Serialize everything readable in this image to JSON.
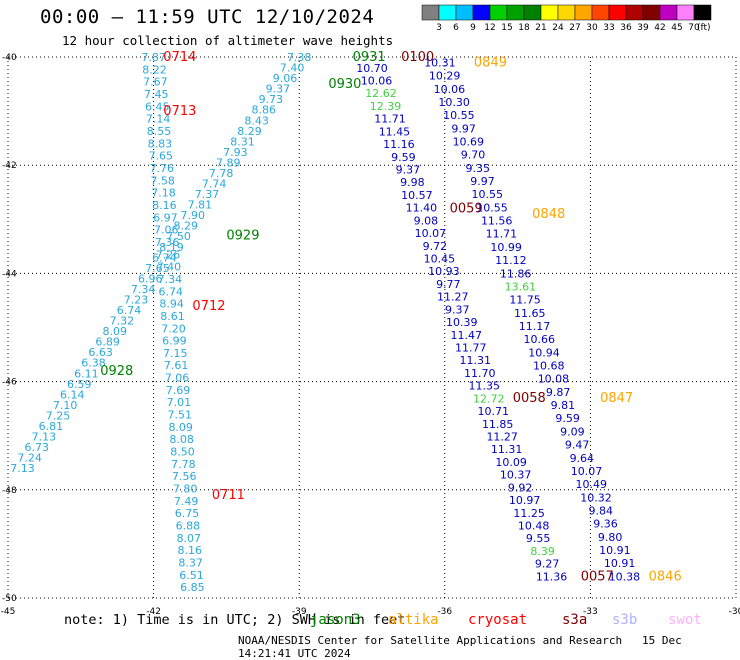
{
  "header": {
    "title": "00:00 – 11:59 UTC 12/10/2024",
    "subtitle": "12 hour collection of altimeter wave heights"
  },
  "colorbar": {
    "unit_label": "(ft)",
    "ticks": [
      "3",
      "6",
      "9",
      "12",
      "15",
      "18",
      "21",
      "24",
      "27",
      "30",
      "33",
      "36",
      "39",
      "42",
      "45",
      "70"
    ],
    "colors": [
      "#808080",
      "#00ffff",
      "#00bfff",
      "#0000ff",
      "#00d000",
      "#00a000",
      "#008000",
      "#ffff00",
      "#ffd700",
      "#ffa500",
      "#ff4500",
      "#ff0000",
      "#b00000",
      "#800000",
      "#c000c0",
      "#ff80ff",
      "#000000"
    ]
  },
  "footer": {
    "note": "note:  1) Time is in UTC; 2) SWH is in feet",
    "credit": "NOAA/NESDIS Center for Satellite Applications and Research",
    "timestamp": "15 Dec 14:21:41 UTC 2024",
    "satellites": [
      {
        "name": "jason3",
        "color": "#008000"
      },
      {
        "name": "altika",
        "color": "#ffa500"
      },
      {
        "name": "cryosat",
        "color": "#ff0000"
      },
      {
        "name": "s3a",
        "color": "#800000"
      },
      {
        "name": "s3b",
        "color": "#b0b0ff"
      },
      {
        "name": "swot",
        "color": "#ffb0ff"
      }
    ]
  },
  "chart_data": {
    "type": "scatter",
    "xlim": [
      -45,
      -30
    ],
    "ylim": [
      -50,
      -40
    ],
    "x_ticks": [
      "-45",
      "-42",
      "-39",
      "-36",
      "-33",
      "-30"
    ],
    "y_ticks": [
      "-40",
      "-42",
      "-44",
      "-46",
      "-48",
      "-50"
    ],
    "grid": true,
    "value_colors": {
      "cyan": "#2aa8dc",
      "blue": "#0000c0",
      "green": "#40d040"
    },
    "tracks": [
      {
        "name": "track-a",
        "labels": [
          "7.87",
          "8.22",
          "7.67",
          "7.45",
          "6.45",
          "7.14",
          "8.55",
          "8.83",
          "7.65",
          "7.76",
          "7.58",
          "7.18",
          "8.16",
          "6.97",
          "7.06",
          "7.36",
          "7.26",
          "7.40",
          "7.34",
          "6.74",
          "8.94",
          "8.61",
          "7.20",
          "6.99",
          "7.15",
          "7.61",
          "7.06",
          "7.69",
          "7.01",
          "7.51",
          "8.09",
          "8.08",
          "8.50",
          "7.78",
          "7.56",
          "7.80",
          "7.49",
          "6.75",
          "6.88",
          "8.07",
          "8.16",
          "8.37",
          "6.51",
          "6.85"
        ],
        "colors": "cyan",
        "start": [
          -42.0,
          -40.0
        ],
        "end": [
          -41.2,
          -49.8
        ],
        "times": [
          {
            "label": "0714",
            "color": "#ff0000",
            "lon": -41.8,
            "lat": -40.0
          },
          {
            "label": "0713",
            "color": "#ff0000",
            "lon": -41.8,
            "lat": -41.0
          },
          {
            "label": "0712",
            "color": "#ff0000",
            "lon": -41.2,
            "lat": -44.6
          },
          {
            "label": "0711",
            "color": "#ff0000",
            "lon": -40.8,
            "lat": -48.1
          }
        ]
      },
      {
        "name": "track-b",
        "labels": [
          "7.13",
          "7.24",
          "6.73",
          "7.13",
          "6.81",
          "7.25",
          "7.10",
          "6.14",
          "6.59",
          "6.11",
          "6.38",
          "6.63",
          "6.89",
          "8.09",
          "7.32",
          "6.74",
          "7.23",
          "7.34",
          "6.96",
          "7.65",
          "6.74",
          "8.19",
          "7.50",
          "8.29",
          "7.90",
          "7.81",
          "7.37",
          "7.74",
          "7.78",
          "7.89",
          "7.93",
          "8.31",
          "8.29",
          "8.43",
          "8.86",
          "9.73",
          "9.37",
          "9.06",
          "7.40",
          "7.38"
        ],
        "colors": "cyan",
        "start": [
          -44.7,
          -47.6
        ],
        "end": [
          -39.0,
          -40.0
        ],
        "times": [
          {
            "label": "0928",
            "color": "#008000",
            "lon": -43.1,
            "lat": -45.8
          },
          {
            "label": "0929",
            "color": "#008000",
            "lon": -40.5,
            "lat": -43.3
          },
          {
            "label": "0930",
            "color": "#008000",
            "lon": -38.4,
            "lat": -40.5
          },
          {
            "label": "0931",
            "color": "#008000",
            "lon": -37.9,
            "lat": -40.0
          }
        ]
      },
      {
        "name": "track-c",
        "labels": [
          "10.70",
          "10.06",
          "12.62",
          "12.39",
          "11.71",
          "11.45",
          "11.16",
          "9.59",
          "9.37",
          "9.98",
          "10.57",
          "11.40",
          "9.08",
          "10.07",
          "9.72",
          "10.45",
          "10.93",
          "9.77",
          "11.27",
          "9.37",
          "10.39",
          "11.47",
          "11.77",
          "11.31",
          "11.70",
          "11.35",
          "12.72",
          "10.71",
          "11.85",
          "11.27",
          "11.31",
          "10.09",
          "10.37",
          "9.92",
          "10.97",
          "11.25",
          "10.48",
          "9.55",
          "8.39",
          "9.27",
          "11.36"
        ],
        "colors": "blue",
        "start": [
          -37.5,
          -40.2
        ],
        "end": [
          -33.8,
          -49.6
        ],
        "times": [
          {
            "label": "0100",
            "color": "#800000",
            "lon": -36.9,
            "lat": -40.0
          },
          {
            "label": "0059",
            "color": "#800000",
            "lon": -35.9,
            "lat": -42.8
          },
          {
            "label": "0058",
            "color": "#800000",
            "lon": -34.6,
            "lat": -46.3
          },
          {
            "label": "0057",
            "color": "#800000",
            "lon": -33.2,
            "lat": -49.6
          }
        ]
      },
      {
        "name": "track-d",
        "labels": [
          "10.31",
          "10.29",
          "10.06",
          "10.30",
          "10.55",
          "9.97",
          "10.69",
          "9.70",
          "9.35",
          "9.97",
          "10.55",
          "10.55",
          "11.56",
          "11.71",
          "10.99",
          "11.12",
          "11.86",
          "13.61",
          "11.75",
          "11.65",
          "11.17",
          "10.66",
          "10.94",
          "10.68",
          "10.08",
          "9.87",
          "9.81",
          "9.59",
          "9.09",
          "9.47",
          "9.64",
          "10.07",
          "10.49",
          "10.32",
          "9.84",
          "9.36",
          "9.80",
          "10.91",
          "10.91",
          "10.38"
        ],
        "colors": "blue",
        "start": [
          -36.1,
          -40.1
        ],
        "end": [
          -32.3,
          -49.6
        ],
        "times": [
          {
            "label": "0849",
            "color": "#ffa500",
            "lon": -35.4,
            "lat": -40.1
          },
          {
            "label": "0848",
            "color": "#ffa500",
            "lon": -34.2,
            "lat": -42.9
          },
          {
            "label": "0847",
            "color": "#ffa500",
            "lon": -32.8,
            "lat": -46.3
          },
          {
            "label": "0846",
            "color": "#ffa500",
            "lon": -31.8,
            "lat": -49.6
          }
        ]
      }
    ]
  }
}
